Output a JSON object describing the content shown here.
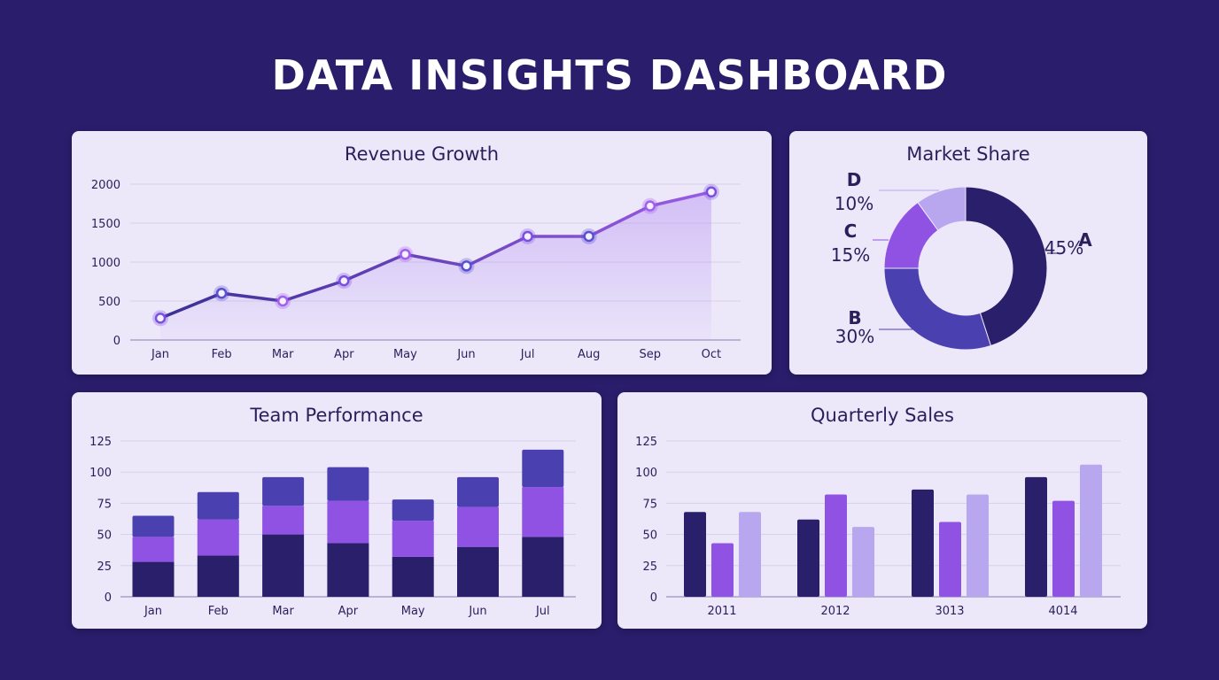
{
  "page_title": "DATA INSIGHTS DASHBOARD",
  "colors": {
    "background": "#2a1d6b",
    "card": "#ece8fa",
    "dark": "#2a1f6b",
    "indigo": "#4b40b0",
    "purple": "#8f52e3",
    "lavender": "#b8a7ee"
  },
  "chart_data": [
    {
      "type": "area",
      "title": "Revenue Growth",
      "categories": [
        "Jan",
        "Feb",
        "Mar",
        "Apr",
        "May",
        "Jun",
        "Jul",
        "Aug",
        "Sep",
        "Oct"
      ],
      "values": [
        280,
        600,
        500,
        760,
        1100,
        950,
        1330,
        1330,
        1720,
        1900
      ],
      "yticks": [
        "0",
        "500",
        "1000",
        "1500",
        "2000"
      ],
      "ylim": [
        0,
        2000
      ],
      "grid": true
    },
    {
      "type": "pie",
      "title": "Market Share",
      "donut": true,
      "slices": [
        {
          "label": "A",
          "pct": "45%",
          "value": 45,
          "color": "#2a1f6b"
        },
        {
          "label": "B",
          "pct": "30%",
          "value": 30,
          "color": "#4b40b0"
        },
        {
          "label": "C",
          "pct": "15%",
          "value": 15,
          "color": "#8f52e3"
        },
        {
          "label": "D",
          "pct": "10%",
          "value": 10,
          "color": "#b8a7ee"
        }
      ]
    },
    {
      "type": "bar",
      "stacked": true,
      "title": "Team Performance",
      "categories": [
        "Jan",
        "Feb",
        "Mar",
        "Apr",
        "May",
        "Jun",
        "Jul"
      ],
      "series": [
        {
          "values": [
            28,
            33,
            50,
            43,
            32,
            40,
            48
          ],
          "color": "#2a1f6b"
        },
        {
          "values": [
            20,
            29,
            23,
            34,
            29,
            32,
            40
          ],
          "color": "#8f52e3"
        },
        {
          "values": [
            17,
            22,
            23,
            27,
            17,
            24,
            30
          ],
          "color": "#4b40b0"
        }
      ],
      "yticks": [
        "0",
        "25",
        "50",
        "75",
        "100",
        "125"
      ],
      "ylim": [
        0,
        125
      ],
      "grid": true
    },
    {
      "type": "bar",
      "title": "Quarterly Sales",
      "categories": [
        "2011",
        "2012",
        "3013",
        "4014"
      ],
      "series": [
        {
          "values": [
            68,
            62,
            86,
            96
          ],
          "color": "#2a1f6b"
        },
        {
          "values": [
            43,
            82,
            60,
            77
          ],
          "color": "#8f52e3"
        },
        {
          "values": [
            68,
            56,
            82,
            106
          ],
          "color": "#b8a7ee"
        }
      ],
      "yticks": [
        "0",
        "25",
        "50",
        "75",
        "100",
        "125"
      ],
      "ylim": [
        0,
        125
      ],
      "grid": true
    }
  ]
}
